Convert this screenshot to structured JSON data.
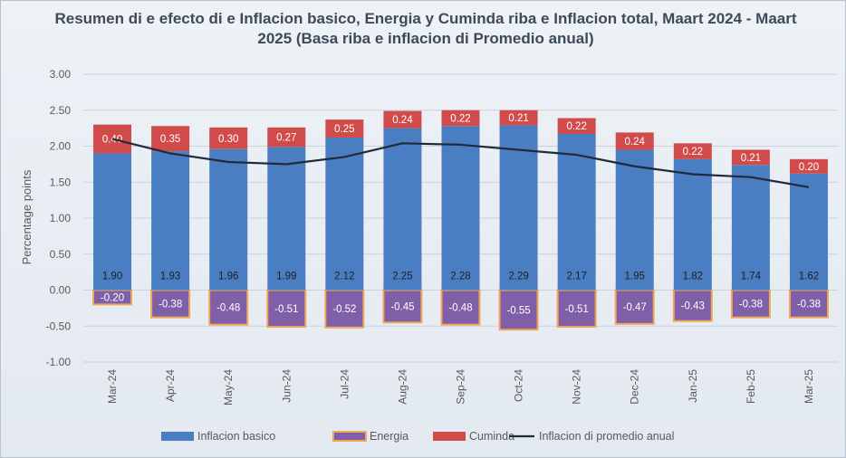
{
  "chart_data": {
    "type": "bar",
    "title": "Resumen di e efecto di e Inflacion basico, Energia y Cuminda riba e Inflacion total, Maart 2024 - Maart 2025 (Basa riba e inflacion di Promedio anual)",
    "ylabel": "Percentage points",
    "xlabel": "",
    "ylim": [
      -1.0,
      3.0
    ],
    "yticks": [
      "3.00",
      "2.50",
      "2.00",
      "1.50",
      "1.00",
      "0.50",
      "0.00",
      "-0.50",
      "-1.00"
    ],
    "ytick_values": [
      3.0,
      2.5,
      2.0,
      1.5,
      1.0,
      0.5,
      0.0,
      -0.5,
      -1.0
    ],
    "categories": [
      "Mar-24",
      "Apr-24",
      "May-24",
      "Jun-24",
      "Jul-24",
      "Aug-24",
      "Sep-24",
      "Oct-24",
      "Nov-24",
      "Dec-24",
      "Jan-25",
      "Feb-25",
      "Mar-25"
    ],
    "series": [
      {
        "name": "Inflacion basico",
        "color": "#4a7ec2",
        "values": [
          1.9,
          1.93,
          1.96,
          1.99,
          2.12,
          2.25,
          2.28,
          2.29,
          2.17,
          1.95,
          1.82,
          1.74,
          1.62
        ],
        "labels": [
          "1.90",
          "1.93",
          "1.96",
          "1.99",
          "2.12",
          "2.25",
          "2.28",
          "2.29",
          "2.17",
          "1.95",
          "1.82",
          "1.74",
          "1.62"
        ]
      },
      {
        "name": "Energia",
        "color": "#7f5fa8",
        "edge": "#f2a65a",
        "values": [
          -0.2,
          -0.38,
          -0.48,
          -0.51,
          -0.52,
          -0.45,
          -0.48,
          -0.55,
          -0.51,
          -0.47,
          -0.43,
          -0.38,
          -0.38
        ],
        "labels": [
          "-0.20",
          "-0.38",
          "-0.48",
          "-0.51",
          "-0.52",
          "-0.45",
          "-0.48",
          "-0.55",
          "-0.51",
          "-0.47",
          "-0.43",
          "-0.38",
          "-0.38"
        ]
      },
      {
        "name": "Cuminda",
        "color": "#d24b4b",
        "values": [
          0.4,
          0.35,
          0.3,
          0.27,
          0.25,
          0.24,
          0.22,
          0.21,
          0.22,
          0.24,
          0.22,
          0.21,
          0.2
        ],
        "labels": [
          "0.40",
          "0.35",
          "0.30",
          "0.27",
          "0.25",
          "0.24",
          "0.22",
          "0.21",
          "0.22",
          "0.24",
          "0.22",
          "0.21",
          "0.20"
        ]
      },
      {
        "name": "Inflacion di promedio anual",
        "type": "line",
        "color": "#1f2a3c",
        "values": [
          2.1,
          1.9,
          1.78,
          1.75,
          1.85,
          2.04,
          2.02,
          1.95,
          1.88,
          1.72,
          1.61,
          1.57,
          1.43
        ]
      }
    ],
    "grid": true,
    "legend_position": "bottom"
  }
}
